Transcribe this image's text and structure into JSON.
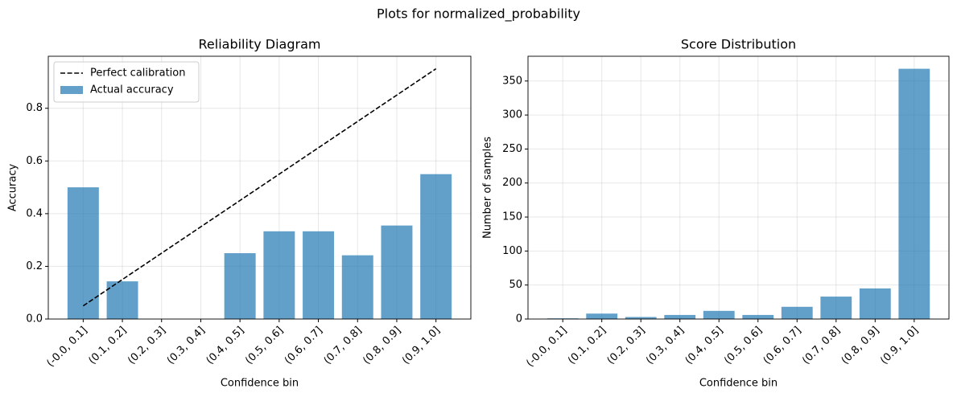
{
  "title": "Plots for normalized_probability",
  "chart_data": [
    {
      "type": "bar",
      "title": "Reliability Diagram",
      "x_label": "Confidence bin",
      "y_label": "Accuracy",
      "categories": [
        "(-0.0, 0.1]",
        "(0.1, 0.2]",
        "(0.2, 0.3]",
        "(0.3, 0.4]",
        "(0.4, 0.5]",
        "(0.5, 0.6]",
        "(0.6, 0.7]",
        "(0.7, 0.8]",
        "(0.8, 0.9]",
        "(0.9, 1.0]"
      ],
      "series": [
        {
          "name": "Perfect calibration",
          "type": "line",
          "color": "#000000",
          "linestyle": "dashed",
          "values": [
            0.05,
            0.15,
            0.25,
            0.35,
            0.45,
            0.55,
            0.65,
            0.75,
            0.85,
            0.95
          ]
        },
        {
          "name": "Actual accuracy",
          "type": "bar",
          "color": "#1f77b4",
          "alpha": 0.7,
          "values": [
            0.5,
            0.143,
            0,
            0,
            0.25,
            0.333,
            0.333,
            0.242,
            0.355,
            0.55
          ]
        }
      ],
      "ylim": [
        0,
        0.9975
      ],
      "yticks": [
        {
          "value": 0,
          "label": "0.0"
        },
        0.2,
        0.4,
        0.6,
        0.8
      ],
      "grid": true,
      "legend": "upper left"
    },
    {
      "type": "bar",
      "title": "Score Distribution",
      "x_label": "Confidence bin",
      "y_label": "Number of samples",
      "categories": [
        "(-0.0, 0.1]",
        "(0.1, 0.2]",
        "(0.2, 0.3]",
        "(0.3, 0.4]",
        "(0.4, 0.5]",
        "(0.5, 0.6]",
        "(0.6, 0.7]",
        "(0.7, 0.8]",
        "(0.8, 0.9]",
        "(0.9, 1.0]"
      ],
      "values": [
        1,
        8,
        3,
        6,
        12,
        6,
        18,
        33,
        45,
        368
      ],
      "color": "#1f77b4",
      "alpha": 0.7,
      "ylim": [
        0,
        386.4
      ],
      "yticks": [
        0,
        50,
        100,
        150,
        200,
        250,
        300,
        350
      ],
      "grid": true
    }
  ]
}
